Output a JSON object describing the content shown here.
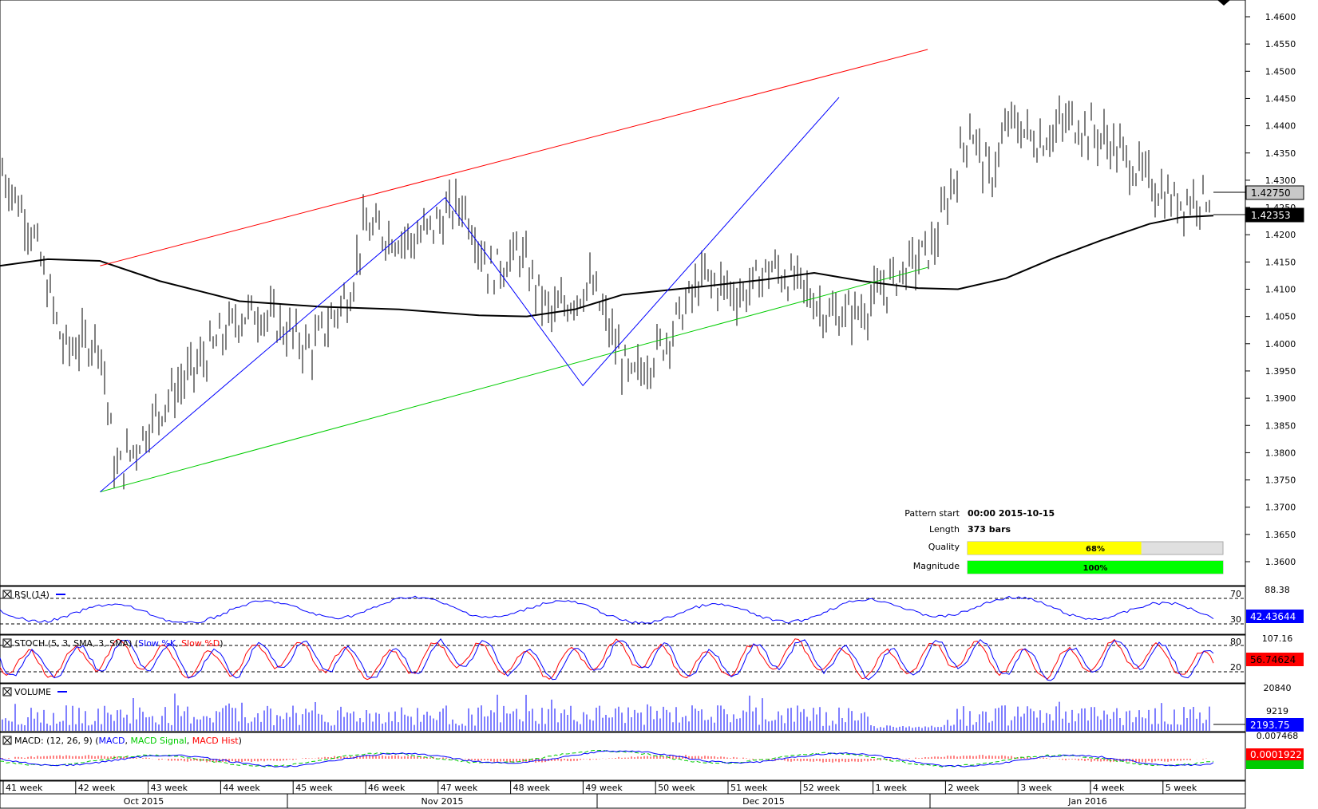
{
  "chart_data": {
    "type": "line",
    "series_main": {
      "price_axis_ticks": [
        "1.4600",
        "1.4550",
        "1.4500",
        "1.4450",
        "1.4400",
        "1.4350",
        "1.4300",
        "1.4250",
        "1.4200",
        "1.4150",
        "1.4100",
        "1.4050",
        "1.4000",
        "1.3950",
        "1.3900",
        "1.3850",
        "1.3800",
        "1.3750",
        "1.3700",
        "1.3650",
        "1.3600"
      ],
      "current_price_label": "1.42750",
      "ma_price_label": "1.42353"
    },
    "pattern_lines": {
      "resistance": [
        {
          "x": "2015-10-15",
          "y": 1.4143
        },
        {
          "x": "2016-01-07",
          "y": 1.454
        }
      ],
      "support": [
        {
          "x": "2015-10-15",
          "y": 1.3728
        },
        {
          "x": "2016-01-07",
          "y": 1.414
        }
      ],
      "zigzag": [
        {
          "x": "2015-10-15",
          "y": 1.3728
        },
        {
          "x": "2015-11-19",
          "y": 1.4268
        },
        {
          "x": "2015-12-03",
          "y": 1.3923
        },
        {
          "x": "2015-12-29",
          "y": 1.4452
        }
      ]
    },
    "x_week_labels": [
      "41 week",
      "42 week",
      "43 week",
      "44 week",
      "45 week",
      "46 week",
      "47 week",
      "48 week",
      "49 week",
      "50 week",
      "51 week",
      "52 week",
      "1 week",
      "2 week",
      "3 week",
      "4 week",
      "5 week"
    ],
    "x_month_labels": [
      "Oct 2015",
      "Nov 2015",
      "Dec 2015",
      "Jan 2016"
    ],
    "info": {
      "pattern_start_label": "Pattern start",
      "pattern_start_value": "00:00 2015-10-15",
      "length_label": "Length",
      "length_value": "373 bars",
      "quality_label": "Quality",
      "quality_value": "68%",
      "quality_fraction": 0.68,
      "magnitude_label": "Magnitude",
      "magnitude_value": "100%",
      "magnitude_fraction": 1.0
    },
    "panels": {
      "rsi": {
        "title": "RSI (14)",
        "top": "88.38",
        "upper": "70",
        "lower": "30",
        "value": "42.43644"
      },
      "stoch": {
        "title_prefix": "STOCH (5, 3, SMA, 3, SMA) (",
        "title_k": "Slow %K",
        "title_sep": ", ",
        "title_d": "Slow %D",
        "title_suffix": ")",
        "top": "107.16",
        "upper": "80",
        "lower": "20",
        "value": "56.74624"
      },
      "volume": {
        "title": "VOLUME",
        "top": "20840",
        "mid": "9219",
        "value": "2193.75"
      },
      "macd": {
        "title_prefix": "MACD: (12, 26, 9) (",
        "title_macd": "MACD",
        "title_sep1": ", ",
        "title_signal": "MACD Signal",
        "title_sep2": ", ",
        "title_hist": "MACD Hist",
        "title_suffix": ")",
        "top": "0.007468",
        "value": "0.0001922"
      }
    },
    "colors": {
      "resistance": "#ff0000",
      "support": "#00cc00",
      "zigzag": "#0000ff",
      "ma": "#000000",
      "quality_fill": "#ffff00",
      "magnitude_fill": "#00ff00",
      "rsi_line": "#0000ff",
      "stoch_k": "#0000ff",
      "stoch_d": "#ff0000",
      "volume": "#0000ff",
      "macd": "#0000ff",
      "macd_signal": "#00cc00",
      "macd_hist": "#ff0000"
    }
  }
}
